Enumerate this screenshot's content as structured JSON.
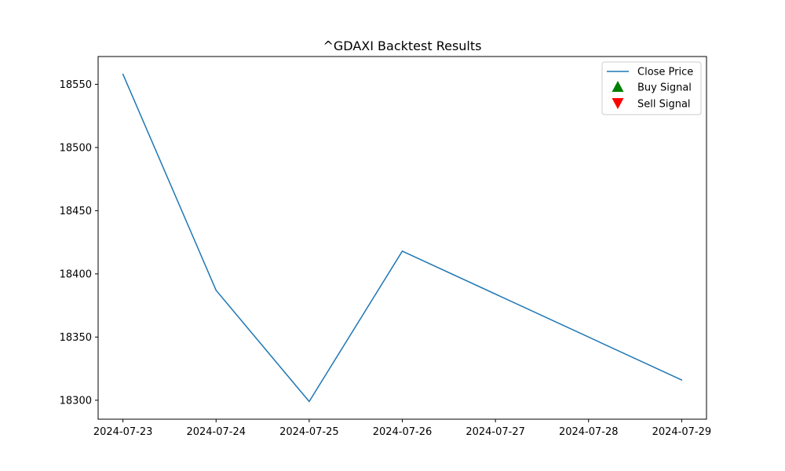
{
  "chart_data": {
    "type": "line",
    "title": "^GDAXI Backtest Results",
    "xlabel": "",
    "ylabel": "",
    "x": [
      "2024-07-23",
      "2024-07-24",
      "2024-07-25",
      "2024-07-26",
      "2024-07-29"
    ],
    "x_ticks": [
      "2024-07-23",
      "2024-07-24",
      "2024-07-25",
      "2024-07-26",
      "2024-07-27",
      "2024-07-28",
      "2024-07-29"
    ],
    "xlim": [
      "2024-07-22T17:36",
      "2024-07-29T06:24"
    ],
    "y_ticks": [
      18300,
      18350,
      18400,
      18450,
      18500,
      18550
    ],
    "ylim": [
      18285,
      18572
    ],
    "series": [
      {
        "name": "Close Price",
        "values": [
          18558,
          18387,
          18299,
          18418,
          18316
        ],
        "color": "#1f77b4"
      }
    ],
    "signals": [
      {
        "name": "Buy Signal",
        "marker": "triangle-up",
        "color": "#008000",
        "points": []
      },
      {
        "name": "Sell Signal",
        "marker": "triangle-down",
        "color": "#ff0000",
        "points": []
      }
    ],
    "legend": {
      "placement": "upper right",
      "entries": [
        "Close Price",
        "Buy Signal",
        "Sell Signal"
      ]
    },
    "grid": false
  }
}
